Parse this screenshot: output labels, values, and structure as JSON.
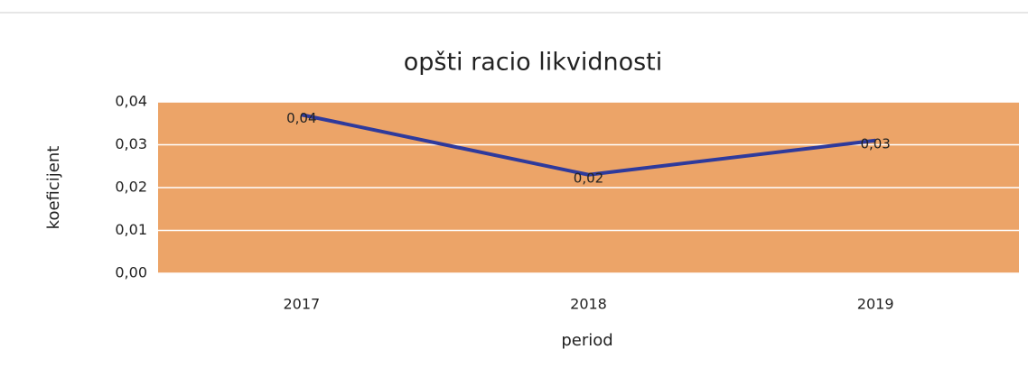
{
  "chart_data": {
    "type": "line",
    "title": "opšti racio likvidnosti",
    "x_label": "period",
    "y_label": "koeficijent",
    "categories": [
      "2017",
      "2018",
      "2019"
    ],
    "series": [
      {
        "name": "opšti racio likvidnosti",
        "color": "#2e3a9c",
        "values": [
          0.037,
          0.023,
          0.031
        ],
        "value_labels": [
          "0,04",
          "0,02",
          "0,03"
        ]
      }
    ],
    "ylim": [
      0,
      0.04
    ],
    "yticks": [
      {
        "value": 0,
        "label": "0,00"
      },
      {
        "value": 0.01,
        "label": "0,01"
      },
      {
        "value": 0.02,
        "label": "0,02"
      },
      {
        "value": 0.03,
        "label": "0,03"
      },
      {
        "value": 0.04,
        "label": "0,04"
      }
    ],
    "grid": true,
    "plot_background": "#eca468"
  }
}
